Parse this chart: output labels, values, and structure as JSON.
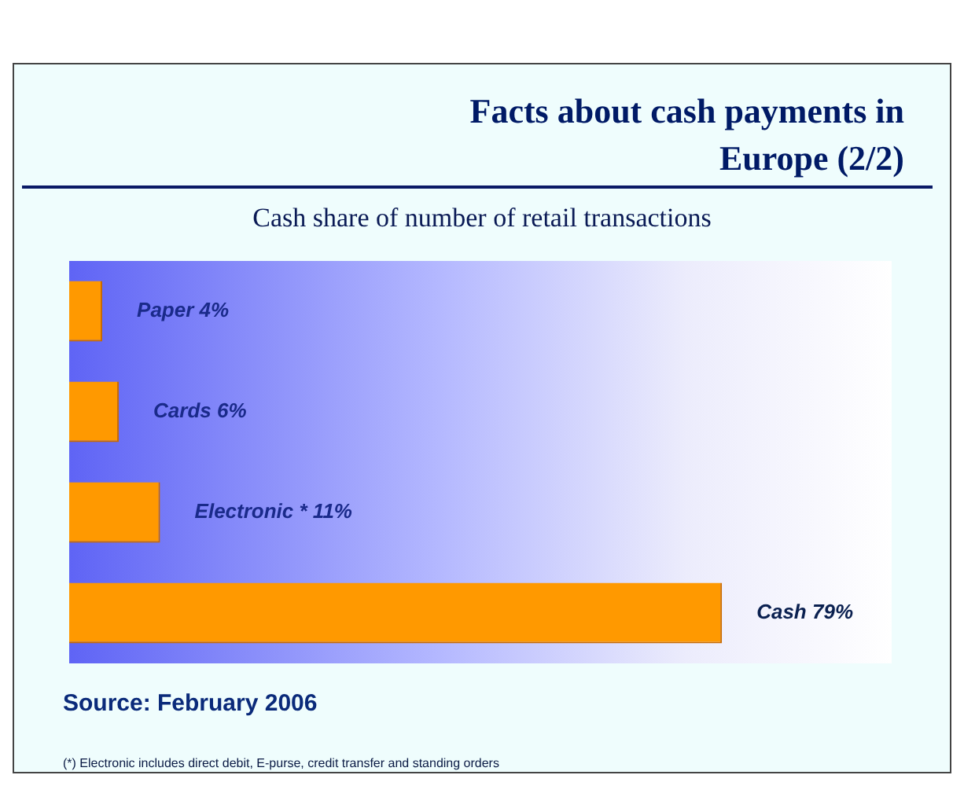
{
  "chart_data": {
    "type": "bar",
    "orientation": "horizontal",
    "title": "Facts about cash payments in Europe (2/2)",
    "subtitle": "Cash share of number of retail transactions",
    "categories": [
      null,
      null,
      null,
      null
    ],
    "values": [
      4,
      6,
      11,
      79
    ],
    "color": "#ff9900",
    "value_labels": [
      "Paper 4%",
      "Cards 6%",
      "Electronic * 11%",
      "Cash 79%"
    ],
    "legend": false,
    "annotations": [
      "Source: February 2006",
      "(*) Electronic includes direct debit, E-purse, credit transfer and standing orders"
    ]
  }
}
